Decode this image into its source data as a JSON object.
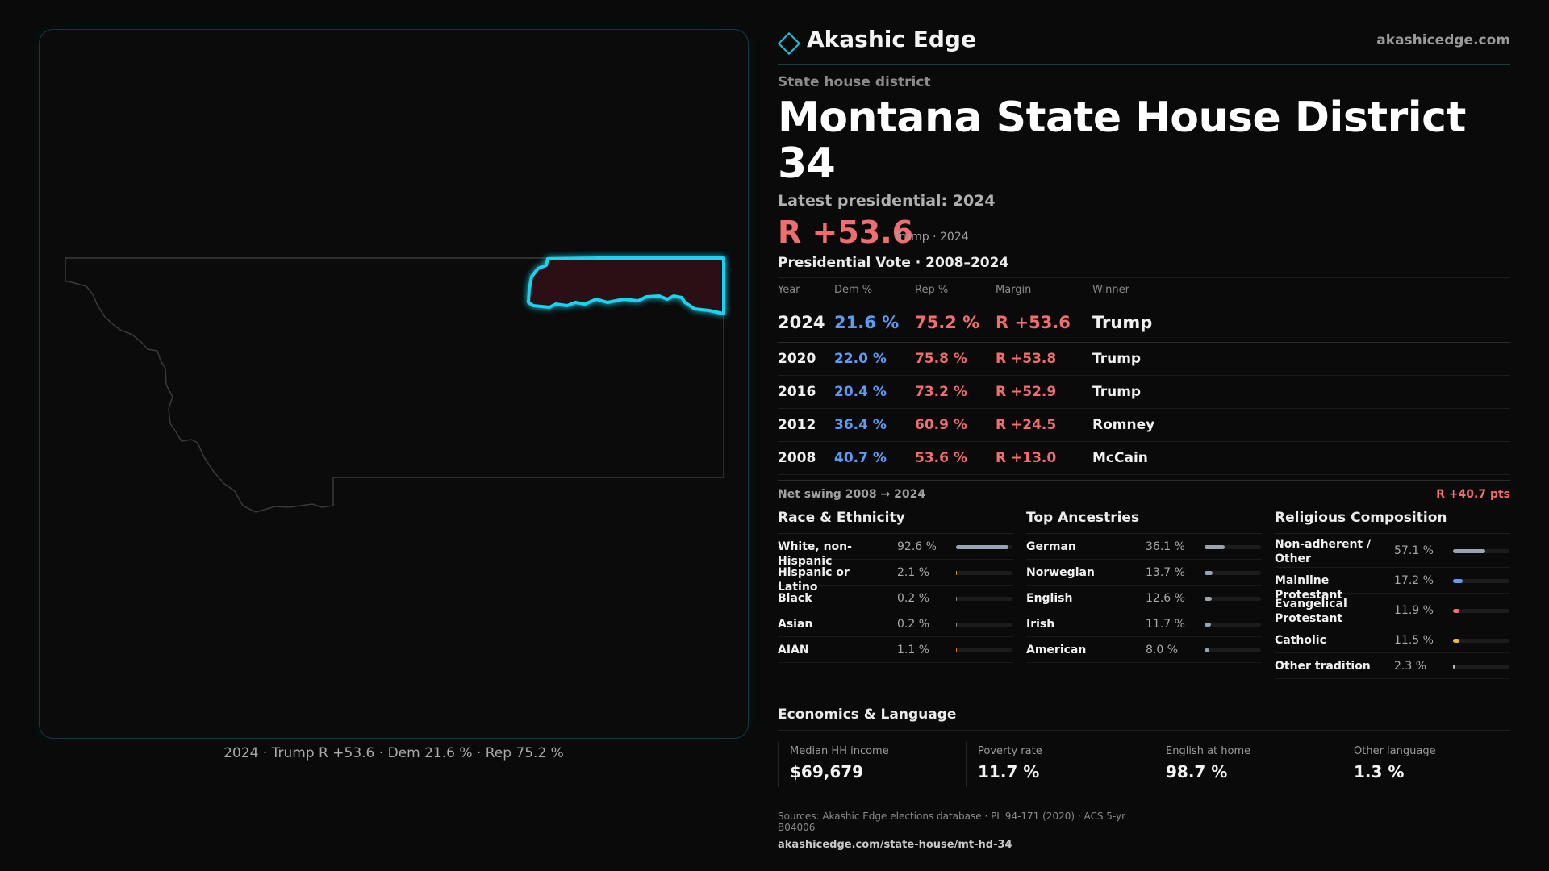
{
  "map": {
    "caption": "2024 · Trump R +53.6 · Dem 21.6 % · Rep 75.2 %",
    "state_outline_color": "#3a3a3a",
    "district_stroke_color": "#19d3f0",
    "district_fill_color": "#2a0f14"
  },
  "brand": {
    "icon": "diamond-icon",
    "name": "Akashic Edge",
    "url": "akashicedge.com"
  },
  "header": {
    "kicker": "State house district",
    "title": "Montana State House District 34",
    "latest_label": "Latest presidential: 2024",
    "margin": "R +53.6",
    "margin_sub": "Trump · 2024",
    "table_title": "Presidential Vote · 2008–2024"
  },
  "votes": {
    "columns": [
      "Year",
      "Dem %",
      "Rep %",
      "Margin",
      "Winner"
    ],
    "rows": [
      {
        "year": "2024",
        "dem": "21.6 %",
        "rep": "75.2 %",
        "margin": "R +53.6",
        "winner": "Trump"
      },
      {
        "year": "2020",
        "dem": "22.0 %",
        "rep": "75.8 %",
        "margin": "R +53.8",
        "winner": "Trump"
      },
      {
        "year": "2016",
        "dem": "20.4 %",
        "rep": "73.2 %",
        "margin": "R +52.9",
        "winner": "Trump"
      },
      {
        "year": "2012",
        "dem": "36.4 %",
        "rep": "60.9 %",
        "margin": "R +24.5",
        "winner": "Romney"
      },
      {
        "year": "2008",
        "dem": "40.7 %",
        "rep": "53.6 %",
        "margin": "R +13.0",
        "winner": "McCain"
      }
    ]
  },
  "swing": {
    "label": "Net swing 2008 → 2024",
    "value": "R +40.7 pts"
  },
  "race": {
    "title": "Race & Ethnicity",
    "items": [
      {
        "label": "White, non-Hispanic",
        "value": "92.6 %",
        "pct": 92.6,
        "color": "#9aa3b0"
      },
      {
        "label": "Hispanic or Latino",
        "value": "2.1 %",
        "pct": 2.1,
        "color": "#d88a2a"
      },
      {
        "label": "Black",
        "value": "0.2 %",
        "pct": 0.2,
        "color": "#888888"
      },
      {
        "label": "Asian",
        "value": "0.2 %",
        "pct": 0.2,
        "color": "#888888"
      },
      {
        "label": "AIAN",
        "value": "1.1 %",
        "pct": 1.1,
        "color": "#d87a2a"
      }
    ]
  },
  "ancestry": {
    "title": "Top Ancestries",
    "items": [
      {
        "label": "German",
        "value": "36.1 %",
        "pct": 36.1,
        "color": "#9aa3b0"
      },
      {
        "label": "Norwegian",
        "value": "13.7 %",
        "pct": 13.7,
        "color": "#9aa3b0"
      },
      {
        "label": "English",
        "value": "12.6 %",
        "pct": 12.6,
        "color": "#9aa3b0"
      },
      {
        "label": "Irish",
        "value": "11.7 %",
        "pct": 11.7,
        "color": "#9aa3b0"
      },
      {
        "label": "American",
        "value": "8.0 %",
        "pct": 8.0,
        "color": "#9aa3b0"
      }
    ]
  },
  "religion": {
    "title": "Religious Composition",
    "items": [
      {
        "label": "Non-adherent / Other",
        "value": "57.1 %",
        "pct": 57.1,
        "color": "#9aa3b0"
      },
      {
        "label": "Mainline Protestant",
        "value": "17.2 %",
        "pct": 17.2,
        "color": "#5e9bf2"
      },
      {
        "label": "Evangelical Protestant",
        "value": "11.9 %",
        "pct": 11.9,
        "color": "#f06d70"
      },
      {
        "label": "Catholic",
        "value": "11.5 %",
        "pct": 11.5,
        "color": "#e8b93a"
      },
      {
        "label": "Other tradition",
        "value": "2.3 %",
        "pct": 2.3,
        "color": "#bbbbbb"
      }
    ]
  },
  "economics": {
    "title": "Economics & Language",
    "items": [
      {
        "label": "Median HH income",
        "value": "$69,679"
      },
      {
        "label": "Poverty rate",
        "value": "11.7 %"
      },
      {
        "label": "English at home",
        "value": "98.7 %"
      },
      {
        "label": "Other language",
        "value": "1.3 %"
      }
    ]
  },
  "sources": {
    "text": "Sources: Akashic Edge elections database · PL 94-171 (2020) · ACS 5-yr B04006",
    "url": "akashicedge.com/state-house/mt-hd-34"
  }
}
